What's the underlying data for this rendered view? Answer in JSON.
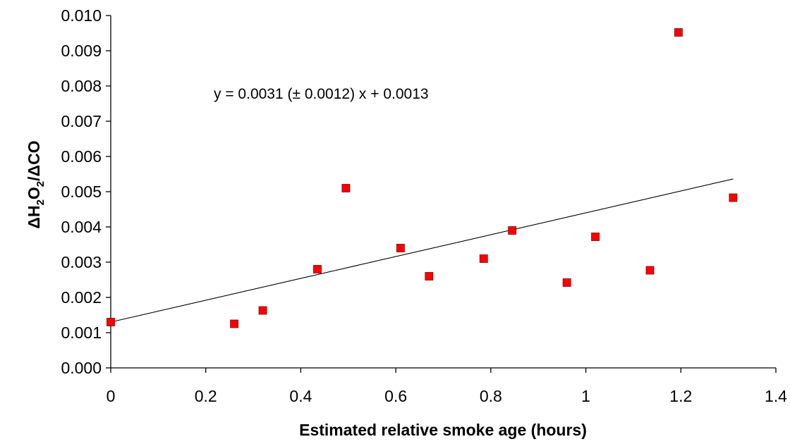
{
  "chart_data": {
    "type": "scatter",
    "xlabel": "Estimated relative smoke age (hours)",
    "ylabel": {
      "delta1": "Δ",
      "h": "H",
      "sub1": "2",
      "o": "O",
      "sub2": "2",
      "slash": "/",
      "delta2": "Δ",
      "co": "CO"
    },
    "xlim": [
      0,
      1.4
    ],
    "ylim": [
      0,
      0.01
    ],
    "x_ticks": [
      0,
      0.2,
      0.4,
      0.6,
      0.8,
      1.0,
      1.2,
      1.4
    ],
    "x_tick_labels": [
      "0",
      "0.2",
      "0.4",
      "0.6",
      "0.8",
      "1",
      "1.2",
      "1.4"
    ],
    "y_ticks": [
      0,
      0.001,
      0.002,
      0.003,
      0.004,
      0.005,
      0.006,
      0.007,
      0.008,
      0.009,
      0.01
    ],
    "y_tick_labels": [
      "0.000",
      "0.001",
      "0.002",
      "0.003",
      "0.004",
      "0.005",
      "0.006",
      "0.007",
      "0.008",
      "0.009",
      "0.010"
    ],
    "grid": false,
    "marker_color": "#ff0000",
    "trendline_color": "#000000",
    "points": [
      {
        "x": 0.0,
        "y": 0.0013
      },
      {
        "x": 0.26,
        "y": 0.00125
      },
      {
        "x": 0.32,
        "y": 0.00163
      },
      {
        "x": 0.435,
        "y": 0.0028
      },
      {
        "x": 0.495,
        "y": 0.0051
      },
      {
        "x": 0.61,
        "y": 0.0034
      },
      {
        "x": 0.67,
        "y": 0.0026
      },
      {
        "x": 0.785,
        "y": 0.0031
      },
      {
        "x": 0.845,
        "y": 0.0039
      },
      {
        "x": 0.96,
        "y": 0.00242
      },
      {
        "x": 1.02,
        "y": 0.00372
      },
      {
        "x": 1.135,
        "y": 0.00277
      },
      {
        "x": 1.195,
        "y": 0.00952
      },
      {
        "x": 1.31,
        "y": 0.00483
      }
    ],
    "trendline": {
      "slope": 0.0031,
      "intercept": 0.0013,
      "x_start": 0,
      "x_end": 1.31,
      "equation": "y = 0.0031 (± 0.0012) x + 0.0013"
    }
  }
}
